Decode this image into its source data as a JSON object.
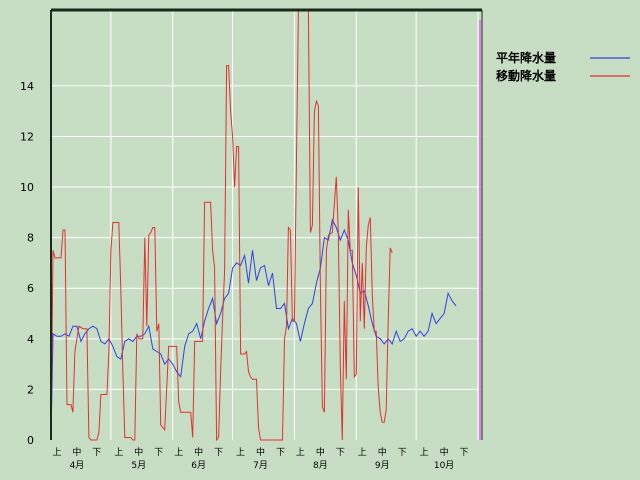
{
  "chart_data": {
    "type": "line",
    "title": "",
    "xlabel": "",
    "ylabel": "",
    "ylim": [
      0,
      17
    ],
    "yticks": [
      0,
      2,
      4,
      6,
      8,
      10,
      12,
      14
    ],
    "grid": true,
    "legend_position": "top-right",
    "x_count": 217,
    "x_sub_labels": [
      {
        "i": 3,
        "label": "上"
      },
      {
        "i": 13,
        "label": "中"
      },
      {
        "i": 23,
        "label": "下"
      },
      {
        "i": 34,
        "label": "上"
      },
      {
        "i": 44,
        "label": "中"
      },
      {
        "i": 54,
        "label": "下"
      },
      {
        "i": 64,
        "label": "上"
      },
      {
        "i": 74,
        "label": "中"
      },
      {
        "i": 84,
        "label": "下"
      },
      {
        "i": 95,
        "label": "上"
      },
      {
        "i": 105,
        "label": "中"
      },
      {
        "i": 115,
        "label": "下"
      },
      {
        "i": 125,
        "label": "上"
      },
      {
        "i": 135,
        "label": "中"
      },
      {
        "i": 145,
        "label": "下"
      },
      {
        "i": 156,
        "label": "上"
      },
      {
        "i": 166,
        "label": "中"
      },
      {
        "i": 176,
        "label": "下"
      },
      {
        "i": 187,
        "label": "上"
      },
      {
        "i": 197,
        "label": "中"
      },
      {
        "i": 207,
        "label": "下"
      }
    ],
    "x_month_labels": [
      {
        "i": 13,
        "label": "4月"
      },
      {
        "i": 44,
        "label": "5月"
      },
      {
        "i": 74,
        "label": "6月"
      },
      {
        "i": 105,
        "label": "7月"
      },
      {
        "i": 135,
        "label": "8月"
      },
      {
        "i": 166,
        "label": "9月"
      },
      {
        "i": 197,
        "label": "10月"
      }
    ],
    "x_grid_lines": [
      0,
      30,
      61,
      91,
      122,
      153,
      183,
      214
    ],
    "series": [
      {
        "name": "平年降水量",
        "color": "#3040e0",
        "points": [
          [
            0,
            0
          ],
          [
            1,
            4.2
          ],
          [
            3,
            4.1
          ],
          [
            5,
            4.1
          ],
          [
            7,
            4.2
          ],
          [
            9,
            4.1
          ],
          [
            11,
            4.5
          ],
          [
            13,
            4.5
          ],
          [
            15,
            3.9
          ],
          [
            17,
            4.2
          ],
          [
            19,
            4.4
          ],
          [
            21,
            4.5
          ],
          [
            23,
            4.4
          ],
          [
            25,
            3.9
          ],
          [
            27,
            3.8
          ],
          [
            29,
            4.0
          ],
          [
            31,
            3.7
          ],
          [
            33,
            3.3
          ],
          [
            35,
            3.2
          ],
          [
            37,
            3.9
          ],
          [
            39,
            4.0
          ],
          [
            41,
            3.9
          ],
          [
            43,
            4.1
          ],
          [
            45,
            4.1
          ],
          [
            47,
            4.2
          ],
          [
            49,
            4.5
          ],
          [
            51,
            3.6
          ],
          [
            53,
            3.5
          ],
          [
            55,
            3.4
          ],
          [
            57,
            3.0
          ],
          [
            59,
            3.2
          ],
          [
            61,
            3.0
          ],
          [
            63,
            2.7
          ],
          [
            65,
            2.5
          ],
          [
            67,
            3.7
          ],
          [
            69,
            4.2
          ],
          [
            71,
            4.3
          ],
          [
            73,
            4.6
          ],
          [
            75,
            4.0
          ],
          [
            77,
            4.7
          ],
          [
            79,
            5.2
          ],
          [
            81,
            5.6
          ],
          [
            83,
            4.6
          ],
          [
            85,
            5.0
          ],
          [
            87,
            5.6
          ],
          [
            89,
            5.8
          ],
          [
            91,
            6.8
          ],
          [
            93,
            7.0
          ],
          [
            95,
            6.9
          ],
          [
            97,
            7.3
          ],
          [
            99,
            6.2
          ],
          [
            101,
            7.5
          ],
          [
            103,
            6.3
          ],
          [
            105,
            6.8
          ],
          [
            107,
            6.9
          ],
          [
            109,
            6.1
          ],
          [
            111,
            6.6
          ],
          [
            113,
            5.2
          ],
          [
            115,
            5.2
          ],
          [
            117,
            5.4
          ],
          [
            119,
            4.4
          ],
          [
            121,
            4.8
          ],
          [
            123,
            4.6
          ],
          [
            125,
            3.9
          ],
          [
            127,
            4.6
          ],
          [
            129,
            5.2
          ],
          [
            131,
            5.4
          ],
          [
            133,
            6.2
          ],
          [
            135,
            6.8
          ],
          [
            137,
            8.0
          ],
          [
            139,
            7.9
          ],
          [
            141,
            8.7
          ],
          [
            143,
            8.4
          ],
          [
            145,
            7.9
          ],
          [
            147,
            8.3
          ],
          [
            149,
            7.9
          ],
          [
            151,
            7.0
          ],
          [
            153,
            6.5
          ],
          [
            155,
            5.8
          ],
          [
            157,
            5.9
          ],
          [
            159,
            5.3
          ],
          [
            161,
            4.6
          ],
          [
            163,
            4.1
          ],
          [
            165,
            4.0
          ],
          [
            167,
            3.8
          ],
          [
            169,
            4.0
          ],
          [
            171,
            3.8
          ],
          [
            173,
            4.3
          ],
          [
            175,
            3.9
          ],
          [
            177,
            4.0
          ],
          [
            179,
            4.3
          ],
          [
            181,
            4.4
          ],
          [
            183,
            4.1
          ],
          [
            185,
            4.3
          ],
          [
            187,
            4.1
          ],
          [
            189,
            4.3
          ],
          [
            191,
            5.0
          ],
          [
            193,
            4.6
          ],
          [
            195,
            4.8
          ],
          [
            197,
            5.0
          ],
          [
            199,
            5.8
          ],
          [
            201,
            5.5
          ],
          [
            203,
            5.3
          ]
        ]
      },
      {
        "name": "移動降水量",
        "color": "#e03030",
        "points": [
          [
            0,
            0
          ],
          [
            1,
            7.5
          ],
          [
            2,
            7.2
          ],
          [
            5,
            7.2
          ],
          [
            6,
            8.3
          ],
          [
            7,
            8.3
          ],
          [
            8,
            1.4
          ],
          [
            10,
            1.4
          ],
          [
            11,
            1.1
          ],
          [
            12,
            3.5
          ],
          [
            14,
            4.5
          ],
          [
            16,
            4.4
          ],
          [
            18,
            4.4
          ],
          [
            19,
            0.1
          ],
          [
            20,
            0.0
          ],
          [
            23,
            0.0
          ],
          [
            24,
            0.3
          ],
          [
            25,
            1.8
          ],
          [
            27,
            1.8
          ],
          [
            28,
            1.8
          ],
          [
            29,
            3.5
          ],
          [
            30,
            7.5
          ],
          [
            31,
            8.6
          ],
          [
            34,
            8.6
          ],
          [
            35,
            6.0
          ],
          [
            36,
            2.8
          ],
          [
            37,
            0.1
          ],
          [
            40,
            0.1
          ],
          [
            41,
            0.0
          ],
          [
            42,
            0.0
          ],
          [
            43,
            4.2
          ],
          [
            44,
            4.0
          ],
          [
            46,
            4.0
          ],
          [
            47,
            8.0
          ],
          [
            48,
            4.5
          ],
          [
            49,
            8.1
          ],
          [
            50,
            8.2
          ],
          [
            51,
            8.4
          ],
          [
            52,
            8.4
          ],
          [
            53,
            4.3
          ],
          [
            54,
            4.6
          ],
          [
            55,
            0.6
          ],
          [
            57,
            0.4
          ],
          [
            59,
            3.7
          ],
          [
            61,
            3.7
          ],
          [
            63,
            3.7
          ],
          [
            64,
            1.5
          ],
          [
            65,
            1.1
          ],
          [
            67,
            1.1
          ],
          [
            70,
            1.1
          ],
          [
            71,
            0.1
          ],
          [
            72,
            3.9
          ],
          [
            75,
            3.9
          ],
          [
            76,
            3.9
          ],
          [
            77,
            9.4
          ],
          [
            80,
            9.4
          ],
          [
            81,
            7.5
          ],
          [
            82,
            6.8
          ],
          [
            83,
            0.0
          ],
          [
            84,
            0.1
          ],
          [
            85,
            2.7
          ],
          [
            86,
            4.8
          ],
          [
            87,
            6.7
          ],
          [
            88,
            14.8
          ],
          [
            89,
            14.8
          ],
          [
            90,
            13.0
          ],
          [
            91,
            12.0
          ],
          [
            92,
            10.0
          ],
          [
            93,
            11.6
          ],
          [
            94,
            11.6
          ],
          [
            95,
            3.4
          ],
          [
            97,
            3.4
          ],
          [
            98,
            3.5
          ],
          [
            99,
            2.7
          ],
          [
            100,
            2.5
          ],
          [
            101,
            2.4
          ],
          [
            103,
            2.4
          ],
          [
            104,
            0.5
          ],
          [
            105,
            0.0
          ],
          [
            107,
            0.0
          ],
          [
            110,
            0.0
          ],
          [
            115,
            0.0
          ],
          [
            116,
            0.0
          ],
          [
            117,
            4.0
          ],
          [
            118,
            4.5
          ],
          [
            119,
            8.4
          ],
          [
            120,
            8.3
          ],
          [
            121,
            4.7
          ],
          [
            122,
            4.7
          ],
          [
            124,
            20
          ],
          [
            129,
            20
          ],
          [
            130,
            8.2
          ],
          [
            131,
            8.5
          ],
          [
            132,
            13.0
          ],
          [
            133,
            13.4
          ],
          [
            134,
            13.2
          ],
          [
            135,
            6.0
          ],
          [
            136,
            1.3
          ],
          [
            137,
            1.1
          ],
          [
            138,
            7.5
          ],
          [
            139,
            8.1
          ],
          [
            141,
            8.2
          ],
          [
            142,
            9.3
          ],
          [
            143,
            10.4
          ],
          [
            144,
            8.2
          ],
          [
            145,
            2.9
          ],
          [
            146,
            0.0
          ],
          [
            147,
            5.5
          ],
          [
            148,
            2.4
          ],
          [
            149,
            9.1
          ],
          [
            150,
            7.5
          ],
          [
            151,
            7.5
          ],
          [
            152,
            2.5
          ],
          [
            153,
            2.6
          ],
          [
            154,
            10.0
          ],
          [
            155,
            4.7
          ],
          [
            156,
            7.0
          ],
          [
            157,
            4.4
          ],
          [
            158,
            7.6
          ],
          [
            159,
            8.5
          ],
          [
            160,
            8.8
          ],
          [
            161,
            5.7
          ],
          [
            162,
            4.3
          ],
          [
            163,
            4.3
          ],
          [
            164,
            2.1
          ],
          [
            165,
            1.1
          ],
          [
            166,
            0.7
          ],
          [
            167,
            0.7
          ],
          [
            168,
            1.2
          ],
          [
            169,
            4.7
          ],
          [
            170,
            7.6
          ],
          [
            171,
            7.4
          ]
        ]
      }
    ],
    "marker_line": {
      "i": 215,
      "color": "#e080f0"
    }
  }
}
